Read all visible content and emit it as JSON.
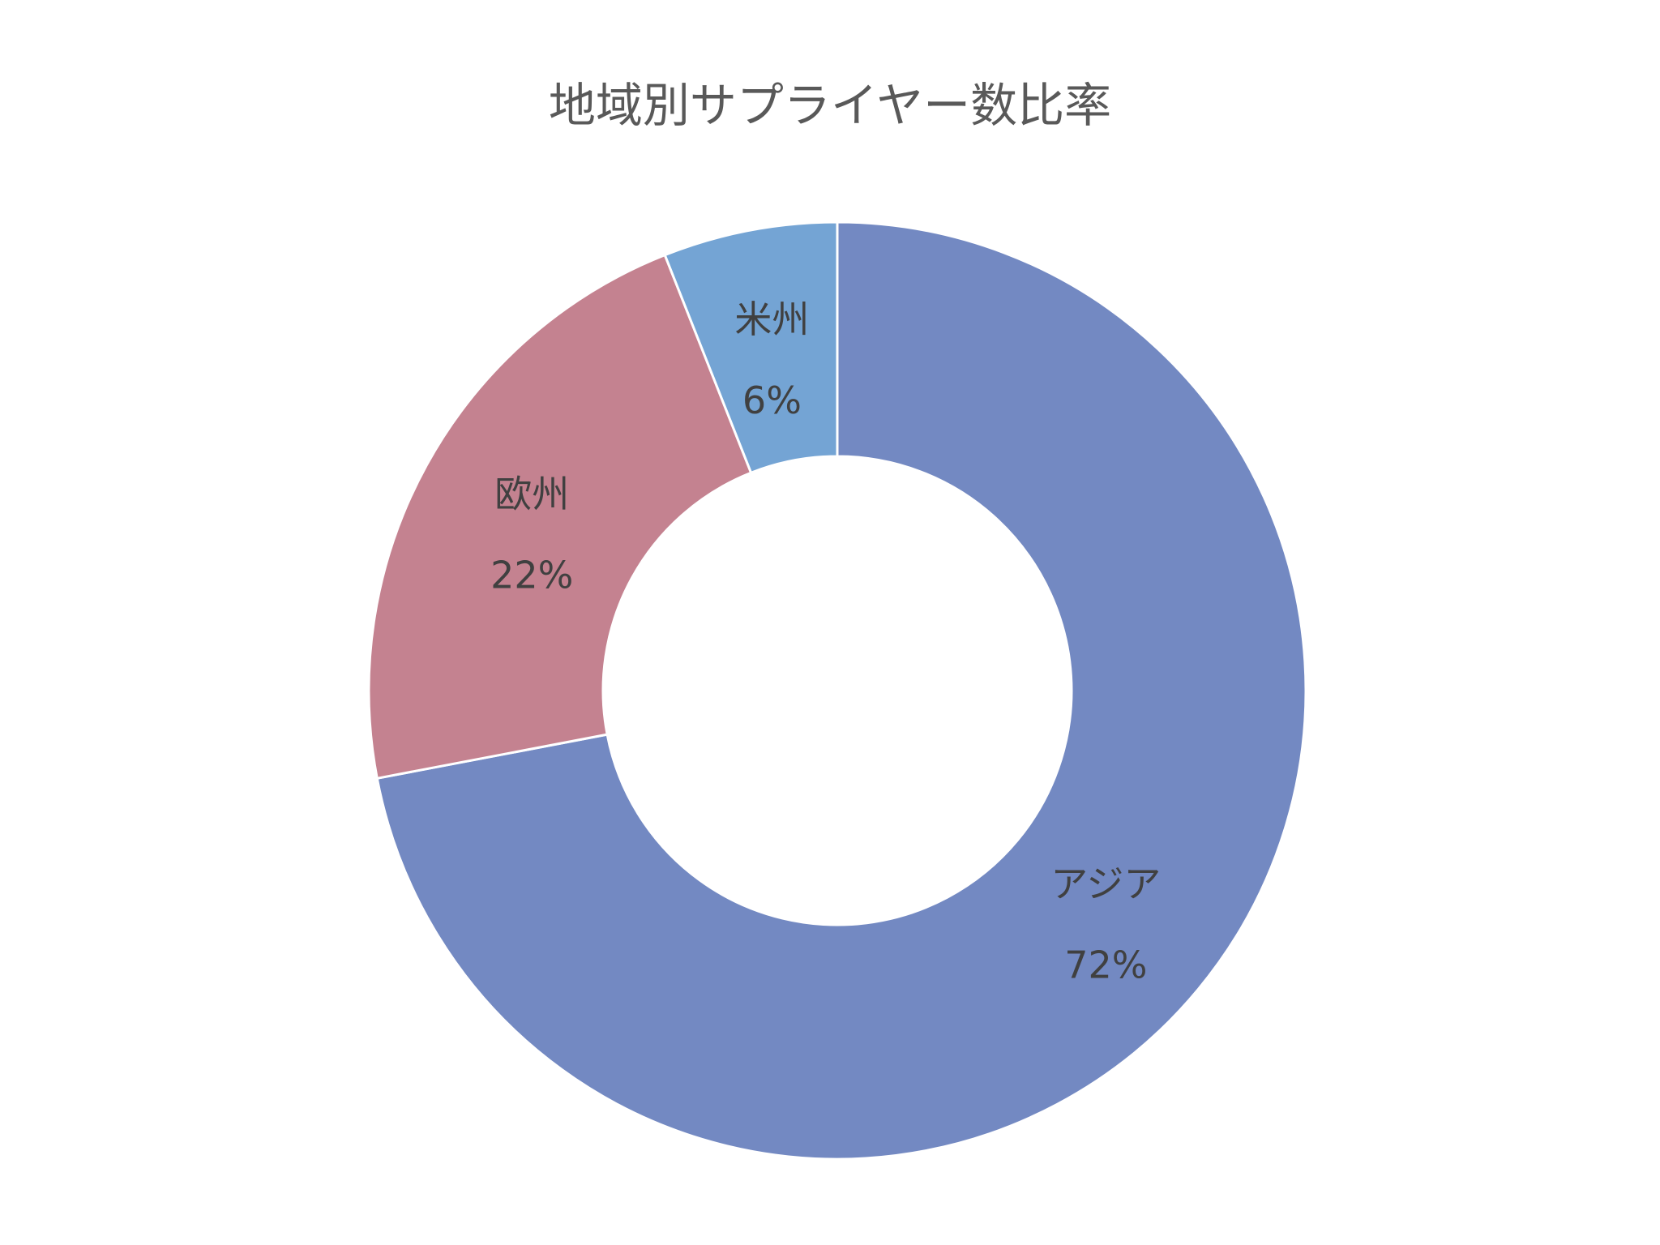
{
  "chart_data": {
    "type": "pie",
    "variant": "donut",
    "title": "地域別サプライヤー数比率",
    "categories": [
      "アジア",
      "欧州",
      "米州"
    ],
    "values": [
      72,
      22,
      6
    ],
    "value_labels": [
      "72%",
      "22%",
      "6%"
    ],
    "colors": [
      "#7389C2",
      "#C48290",
      "#74A4D4"
    ],
    "legend": "none",
    "start": "12 o'clock",
    "direction": "clockwise"
  }
}
